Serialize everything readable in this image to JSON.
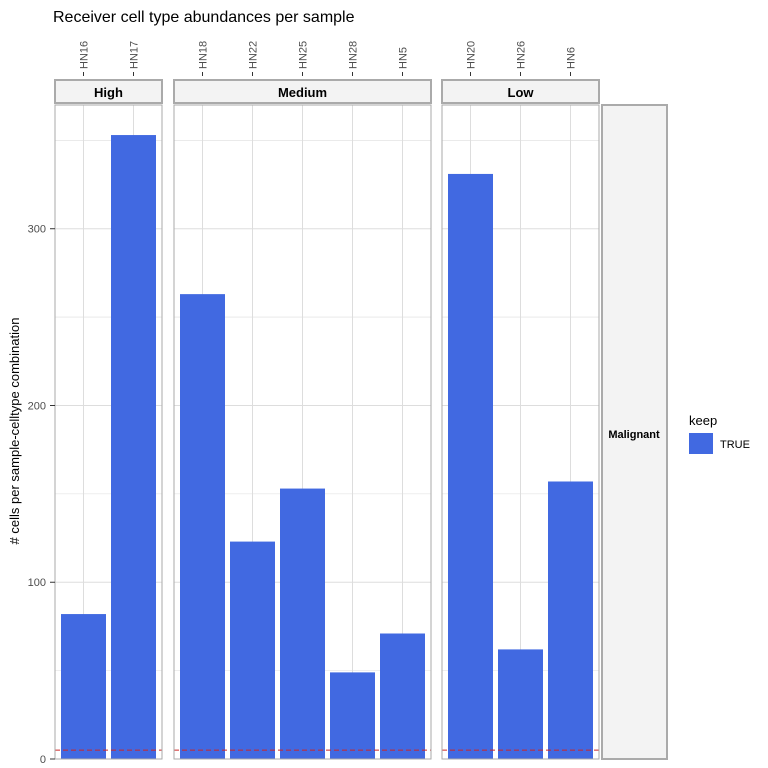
{
  "chart_data": {
    "type": "bar",
    "title": "Receiver cell type abundances per sample",
    "ylabel": "# cells per sample-celltype combination",
    "xlabel": "",
    "ylim": [
      0,
      370
    ],
    "yticks": [
      0,
      100,
      200,
      300
    ],
    "threshold": 5,
    "row_facet": "Malignant",
    "panels": [
      {
        "label": "High",
        "categories": [
          "HN16",
          "HN17"
        ],
        "values": [
          82,
          353
        ]
      },
      {
        "label": "Medium",
        "categories": [
          "HN18",
          "HN22",
          "HN25",
          "HN28",
          "HN5"
        ],
        "values": [
          263,
          123,
          153,
          49,
          71
        ]
      },
      {
        "label": "Low",
        "categories": [
          "HN20",
          "HN26",
          "HN6"
        ],
        "values": [
          331,
          62,
          157
        ]
      }
    ],
    "legend": {
      "title": "keep",
      "entries": [
        {
          "label": "TRUE",
          "color": "#4169E1"
        }
      ]
    },
    "colors": {
      "bar": "#4169E1",
      "threshold": "#CD2626",
      "grid": "#DDDDDD",
      "strip_fill": "#F3F3F3",
      "strip_border": "#AAAAAA"
    }
  }
}
